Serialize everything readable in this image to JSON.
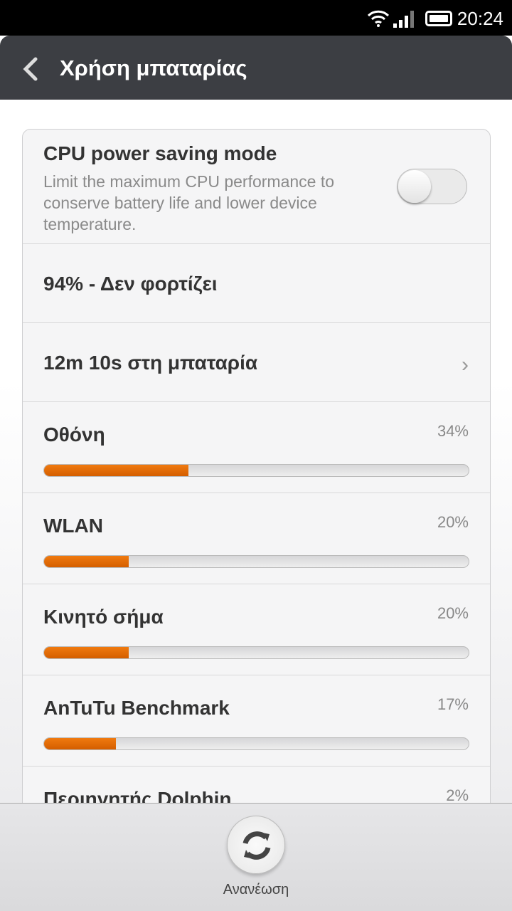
{
  "status": {
    "time": "20:24"
  },
  "header": {
    "title": "Χρήση μπαταρίας"
  },
  "cpu": {
    "title": "CPU power saving mode",
    "description": "Limit the maximum CPU performance to conserve battery life and lower device temperature.",
    "enabled": false
  },
  "battery_status": "94% - Δεν φορτίζει",
  "on_battery": "12m 10s στη μπαταρία",
  "usage": [
    {
      "name": "Οθόνη",
      "percent_label": "34%",
      "value": 34
    },
    {
      "name": "WLAN",
      "percent_label": "20%",
      "value": 20
    },
    {
      "name": "Κινητό σήμα",
      "percent_label": "20%",
      "value": 20
    },
    {
      "name": "AnTuTu Benchmark",
      "percent_label": "17%",
      "value": 17
    },
    {
      "name": "Περιηγητής Dolphin",
      "percent_label": "2%",
      "value": 2
    }
  ],
  "bottom": {
    "refresh_label": "Ανανέωση"
  },
  "colors": {
    "accent": "#e86c08",
    "header": "#3c3e43"
  }
}
